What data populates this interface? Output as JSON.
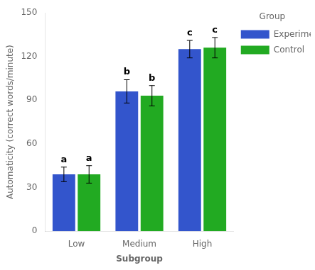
{
  "chart_data": {
    "type": "bar",
    "categories": [
      "Low",
      "Medium",
      "High"
    ],
    "series": [
      {
        "name": "Experimental",
        "color": "#3355CC",
        "values": [
          39,
          96,
          125
        ],
        "errors": [
          5,
          8,
          6
        ],
        "annotations": [
          "a",
          "b",
          "c"
        ]
      },
      {
        "name": "Control",
        "color": "#22AA22",
        "values": [
          39,
          93,
          126
        ],
        "errors": [
          6,
          7,
          7
        ],
        "annotations": [
          "a",
          "b",
          "c"
        ]
      }
    ],
    "xlabel": "Subgroup",
    "ylabel": "Automaticity (correct words/minute)",
    "legend_title": "Group",
    "legend": "right",
    "ylim": [
      0,
      150
    ],
    "yticks": [
      0,
      30,
      60,
      90,
      120,
      150
    ],
    "grid": false
  }
}
